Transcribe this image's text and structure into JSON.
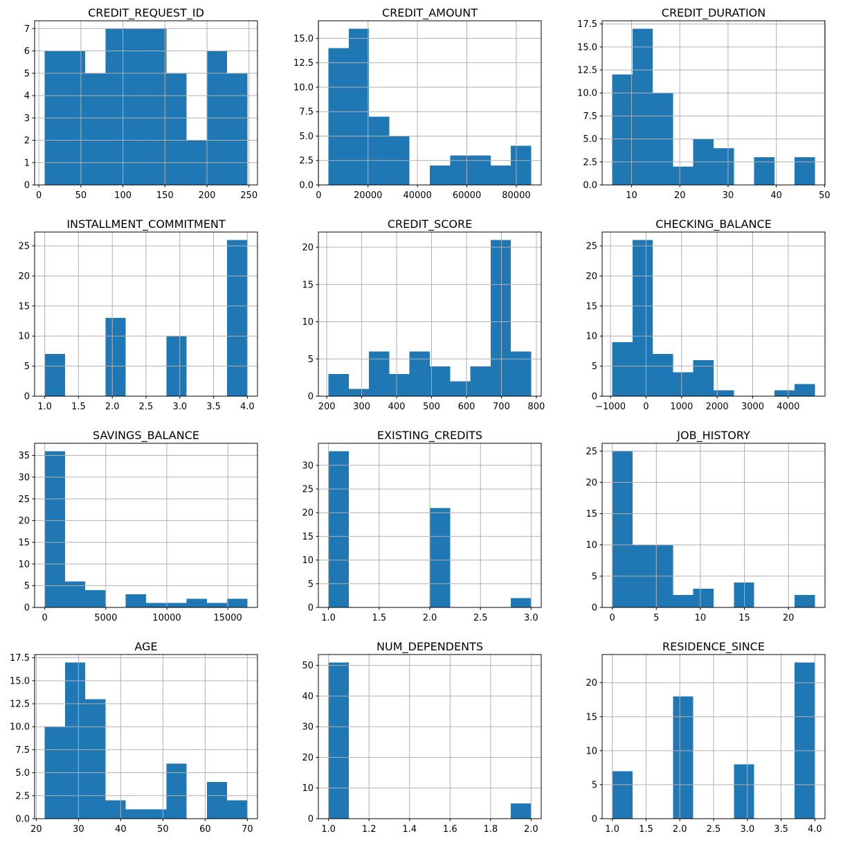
{
  "figure": {
    "kind": "histogram-grid",
    "rows": 4,
    "cols": 3,
    "total_observations": 56,
    "bar_color": "#1f77b4",
    "grid_color": "#b0b0b0",
    "frame_color": "#000000",
    "background": "#ffffff",
    "grid": true,
    "legend": "none"
  },
  "chart_data": [
    {
      "type": "bar",
      "kind": "histogram",
      "title": "CREDIT_REQUEST_ID",
      "bin_start": 7,
      "bin_width": 24.1,
      "values": [
        6,
        6,
        5,
        7,
        7,
        7,
        5,
        2,
        6,
        5
      ],
      "xlim": [
        -5.05,
        260.05
      ],
      "ylim": [
        0,
        7.35
      ],
      "xticks": [
        0,
        50,
        100,
        150,
        200,
        250
      ],
      "xtick_labels": [
        "0",
        "50",
        "100",
        "150",
        "200",
        "250"
      ],
      "yticks": [
        0,
        1,
        2,
        3,
        4,
        5,
        6,
        7
      ],
      "ytick_labels": [
        "0",
        "1",
        "2",
        "3",
        "4",
        "5",
        "6",
        "7"
      ]
    },
    {
      "type": "bar",
      "kind": "histogram",
      "title": "CREDIT_AMOUNT",
      "bin_start": 4000,
      "bin_width": 8200,
      "values": [
        14,
        16,
        7,
        5,
        0,
        2,
        3,
        3,
        2,
        4
      ],
      "xlim": [
        -100,
        90100
      ],
      "ylim": [
        0,
        16.8
      ],
      "xticks": [
        0,
        20000,
        40000,
        60000,
        80000
      ],
      "xtick_labels": [
        "0",
        "20000",
        "40000",
        "60000",
        "80000"
      ],
      "yticks": [
        0,
        2.5,
        5,
        7.5,
        10,
        12.5,
        15
      ],
      "ytick_labels": [
        "0.0",
        "2.5",
        "5.0",
        "7.5",
        "10.0",
        "12.5",
        "15.0"
      ]
    },
    {
      "type": "bar",
      "kind": "histogram",
      "title": "CREDIT_DURATION",
      "bin_start": 6,
      "bin_width": 4.2,
      "values": [
        12,
        17,
        10,
        2,
        5,
        4,
        0,
        3,
        0,
        3
      ],
      "xlim": [
        3.9,
        50.1
      ],
      "ylim": [
        0,
        17.85
      ],
      "xticks": [
        10,
        20,
        30,
        40,
        50
      ],
      "xtick_labels": [
        "10",
        "20",
        "30",
        "40",
        "50"
      ],
      "yticks": [
        0,
        2.5,
        5,
        7.5,
        10,
        12.5,
        15,
        17.5
      ],
      "ytick_labels": [
        "0.0",
        "2.5",
        "5.0",
        "7.5",
        "10.0",
        "12.5",
        "15.0",
        "17.5"
      ]
    },
    {
      "type": "bar",
      "kind": "histogram",
      "title": "INSTALLMENT_COMMITMENT",
      "bin_start": 1,
      "bin_width": 0.3,
      "values": [
        7,
        0,
        0,
        13,
        0,
        0,
        10,
        0,
        0,
        26
      ],
      "xlim": [
        0.85,
        4.15
      ],
      "ylim": [
        0,
        27.3
      ],
      "xticks": [
        1,
        1.5,
        2,
        2.5,
        3,
        3.5,
        4
      ],
      "xtick_labels": [
        "1.0",
        "1.5",
        "2.0",
        "2.5",
        "3.0",
        "3.5",
        "4.0"
      ],
      "yticks": [
        0,
        5,
        10,
        15,
        20,
        25
      ],
      "ytick_labels": [
        "0",
        "5",
        "10",
        "15",
        "20",
        "25"
      ]
    },
    {
      "type": "bar",
      "kind": "histogram",
      "title": "CREDIT_SCORE",
      "bin_start": 205,
      "bin_width": 58,
      "values": [
        3,
        1,
        6,
        3,
        6,
        4,
        2,
        4,
        21,
        6
      ],
      "xlim": [
        176,
        814
      ],
      "ylim": [
        0,
        22.05
      ],
      "xticks": [
        200,
        300,
        400,
        500,
        600,
        700,
        800
      ],
      "xtick_labels": [
        "200",
        "300",
        "400",
        "500",
        "600",
        "700",
        "800"
      ],
      "yticks": [
        0,
        5,
        10,
        15,
        20
      ],
      "ytick_labels": [
        "0",
        "5",
        "10",
        "15",
        "20"
      ]
    },
    {
      "type": "bar",
      "kind": "histogram",
      "title": "CHECKING_BALANCE",
      "bin_start": -950,
      "bin_width": 570,
      "values": [
        9,
        26,
        7,
        4,
        6,
        1,
        0,
        0,
        1,
        2
      ],
      "xlim": [
        -1235,
        5035
      ],
      "ylim": [
        0,
        27.3
      ],
      "xticks": [
        -1000,
        0,
        1000,
        2000,
        3000,
        4000
      ],
      "xtick_labels": [
        "−1000",
        "0",
        "1000",
        "2000",
        "3000",
        "4000"
      ],
      "yticks": [
        0,
        5,
        10,
        15,
        20,
        25
      ],
      "ytick_labels": [
        "0",
        "5",
        "10",
        "15",
        "20",
        "25"
      ]
    },
    {
      "type": "bar",
      "kind": "histogram",
      "title": "SAVINGS_BALANCE",
      "bin_start": 0,
      "bin_width": 1660,
      "values": [
        36,
        6,
        4,
        0,
        3,
        1,
        1,
        2,
        1,
        2
      ],
      "xlim": [
        -830,
        17430
      ],
      "ylim": [
        0,
        37.8
      ],
      "xticks": [
        0,
        5000,
        10000,
        15000
      ],
      "xtick_labels": [
        "0",
        "5000",
        "10000",
        "15000"
      ],
      "yticks": [
        0,
        5,
        10,
        15,
        20,
        25,
        30,
        35
      ],
      "ytick_labels": [
        "0",
        "5",
        "10",
        "15",
        "20",
        "25",
        "30",
        "35"
      ]
    },
    {
      "type": "bar",
      "kind": "histogram",
      "title": "EXISTING_CREDITS",
      "bin_start": 1,
      "bin_width": 0.2,
      "values": [
        33,
        0,
        0,
        0,
        0,
        21,
        0,
        0,
        0,
        2
      ],
      "xlim": [
        0.9,
        3.1
      ],
      "ylim": [
        0,
        34.65
      ],
      "xticks": [
        1,
        1.5,
        2,
        2.5,
        3
      ],
      "xtick_labels": [
        "1.0",
        "1.5",
        "2.0",
        "2.5",
        "3.0"
      ],
      "yticks": [
        0,
        5,
        10,
        15,
        20,
        25,
        30
      ],
      "ytick_labels": [
        "0",
        "5",
        "10",
        "15",
        "20",
        "25",
        "30"
      ]
    },
    {
      "type": "bar",
      "kind": "histogram",
      "title": "JOB_HISTORY",
      "bin_start": 0,
      "bin_width": 2.3,
      "values": [
        25,
        10,
        10,
        2,
        3,
        0,
        4,
        0,
        0,
        2
      ],
      "xlim": [
        -1.15,
        24.15
      ],
      "ylim": [
        0,
        26.25
      ],
      "xticks": [
        0,
        5,
        10,
        15,
        20
      ],
      "xtick_labels": [
        "0",
        "5",
        "10",
        "15",
        "20"
      ],
      "yticks": [
        0,
        5,
        10,
        15,
        20,
        25
      ],
      "ytick_labels": [
        "0",
        "5",
        "10",
        "15",
        "20",
        "25"
      ]
    },
    {
      "type": "bar",
      "kind": "histogram",
      "title": "AGE",
      "bin_start": 22,
      "bin_width": 4.8,
      "values": [
        10,
        17,
        13,
        2,
        1,
        1,
        6,
        0,
        4,
        2
      ],
      "xlim": [
        19.6,
        72.4
      ],
      "ylim": [
        0,
        17.85
      ],
      "xticks": [
        20,
        30,
        40,
        50,
        60,
        70
      ],
      "xtick_labels": [
        "20",
        "30",
        "40",
        "50",
        "60",
        "70"
      ],
      "yticks": [
        0,
        2.5,
        5,
        7.5,
        10,
        12.5,
        15,
        17.5
      ],
      "ytick_labels": [
        "0.0",
        "2.5",
        "5.0",
        "7.5",
        "10.0",
        "12.5",
        "15.0",
        "17.5"
      ]
    },
    {
      "type": "bar",
      "kind": "histogram",
      "title": "NUM_DEPENDENTS",
      "bin_start": 1,
      "bin_width": 0.1,
      "values": [
        51,
        0,
        0,
        0,
        0,
        0,
        0,
        0,
        0,
        5
      ],
      "xlim": [
        0.95,
        2.05
      ],
      "ylim": [
        0,
        53.55
      ],
      "xticks": [
        1,
        1.2,
        1.4,
        1.6,
        1.8,
        2
      ],
      "xtick_labels": [
        "1.0",
        "1.2",
        "1.4",
        "1.6",
        "1.8",
        "2.0"
      ],
      "yticks": [
        0,
        10,
        20,
        30,
        40,
        50
      ],
      "ytick_labels": [
        "0",
        "10",
        "20",
        "30",
        "40",
        "50"
      ]
    },
    {
      "type": "bar",
      "kind": "histogram",
      "title": "RESIDENCE_SINCE",
      "bin_start": 1,
      "bin_width": 0.3,
      "values": [
        7,
        0,
        0,
        18,
        0,
        0,
        8,
        0,
        0,
        23
      ],
      "xlim": [
        0.85,
        4.15
      ],
      "ylim": [
        0,
        24.15
      ],
      "xticks": [
        1,
        1.5,
        2,
        2.5,
        3,
        3.5,
        4
      ],
      "xtick_labels": [
        "1.0",
        "1.5",
        "2.0",
        "2.5",
        "3.0",
        "3.5",
        "4.0"
      ],
      "yticks": [
        0,
        5,
        10,
        15,
        20
      ],
      "ytick_labels": [
        "0",
        "5",
        "10",
        "15",
        "20"
      ]
    }
  ]
}
